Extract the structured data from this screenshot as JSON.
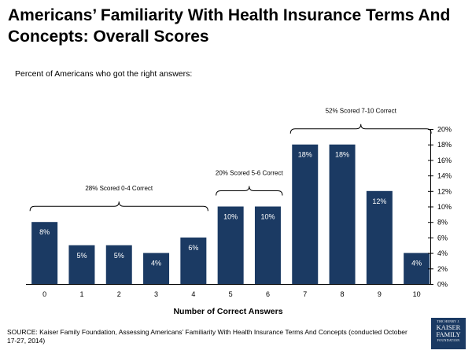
{
  "title": "Americans’ Familiarity With Health Insurance Terms And Concepts: Overall Scores",
  "subtitle": "Percent of Americans who got the right answers:",
  "source": "SOURCE: Kaiser Family Foundation, Assessing Americans’ Familiarity With Health Insurance Terms And Concepts (conducted October 17-27, 2014)",
  "logo": {
    "line1": "THE HENRY J.",
    "line2": "KAISER",
    "line3": "FAMILY",
    "line4": "FOUNDATION"
  },
  "colors": {
    "bar": "#1b3a63",
    "bar_label": "#ffffff",
    "axis": "#000000"
  },
  "chart_data": {
    "type": "bar",
    "title": "Americans’ Familiarity With Health Insurance Terms And Concepts: Overall Scores",
    "xlabel": "Number of Correct Answers",
    "ylabel": "",
    "categories": [
      "0",
      "1",
      "2",
      "3",
      "4",
      "5",
      "6",
      "7",
      "8",
      "9",
      "10"
    ],
    "values": [
      8,
      5,
      5,
      4,
      6,
      10,
      10,
      18,
      18,
      12,
      4
    ],
    "value_labels": [
      "8%",
      "5%",
      "5%",
      "4%",
      "6%",
      "10%",
      "10%",
      "18%",
      "18%",
      "12%",
      "4%"
    ],
    "ylim": [
      0,
      20
    ],
    "yticks": [
      "0%",
      "2%",
      "4%",
      "6%",
      "8%",
      "10%",
      "12%",
      "14%",
      "16%",
      "18%",
      "20%"
    ],
    "y_axis_position": "right",
    "grid": false,
    "groups": [
      {
        "label": "28% Scored 0-4 Correct",
        "from": 0,
        "to": 4
      },
      {
        "label": "20% Scored 5-6 Correct",
        "from": 5,
        "to": 6
      },
      {
        "label": "52% Scored 7-10 Correct",
        "from": 7,
        "to": 10
      }
    ]
  }
}
